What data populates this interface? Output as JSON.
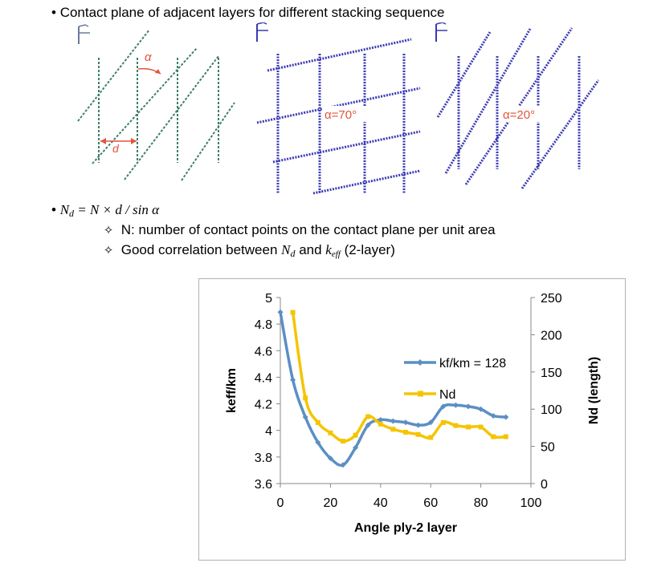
{
  "bullets": {
    "title": "Contact plane of adjacent layers for different stacking sequence",
    "formula_nd": "N",
    "formula_nd_sub": "d",
    "formula_rest": " = N × d / sin α",
    "sub1": "N: number of contact points on the contact plane per unit area",
    "sub2_pre": "Good correlation between ",
    "sub2_nd": "N",
    "sub2_nd_sub": "d",
    "sub2_and": " and ",
    "sub2_k": "k",
    "sub2_k_sub": "eff",
    "sub2_post": " (2-layer)"
  },
  "panels": {
    "p1_alpha": "α",
    "p1_d": "d",
    "p2_label": "α=70°",
    "p3_label": "α=20°"
  },
  "colors": {
    "panel1_lines": "#3f7f6a",
    "panel23_lines": "#3a3ab4",
    "annotation": "#e0553a",
    "series_keff": "#5b8fc4",
    "series_nd": "#f5c400"
  },
  "chart_data": {
    "type": "line",
    "xlabel": "Angle ply-2 layer",
    "ylabel": "keff/km",
    "y2label": "Nd (length)",
    "xlim": [
      0,
      100
    ],
    "ylim": [
      3.6,
      5
    ],
    "y2lim": [
      0,
      250
    ],
    "x_ticks": [
      "0",
      "20",
      "40",
      "60",
      "80",
      "100"
    ],
    "y_ticks": [
      "3.6",
      "3.8",
      "4",
      "4.2",
      "4.4",
      "4.6",
      "4.8",
      "5"
    ],
    "y2_ticks": [
      "0",
      "50",
      "100",
      "150",
      "200",
      "250"
    ],
    "grid": false,
    "legend_position": "right",
    "series": [
      {
        "name": "kf/km = 128",
        "axis": "left",
        "marker": "diamond",
        "x": [
          0,
          5,
          10,
          15,
          20,
          25,
          30,
          35,
          40,
          45,
          50,
          55,
          60,
          65,
          70,
          75,
          80,
          85,
          90
        ],
        "y": [
          4.89,
          4.38,
          4.1,
          3.91,
          3.79,
          3.74,
          3.87,
          4.04,
          4.08,
          4.07,
          4.06,
          4.04,
          4.06,
          4.18,
          4.19,
          4.18,
          4.16,
          4.11,
          4.1
        ]
      },
      {
        "name": "Nd",
        "axis": "right",
        "marker": "square",
        "x": [
          5,
          10,
          15,
          20,
          25,
          30,
          35,
          40,
          45,
          50,
          55,
          60,
          65,
          70,
          75,
          80,
          85,
          90
        ],
        "y": [
          230,
          115,
          82,
          68,
          57,
          65,
          90,
          80,
          73,
          69,
          66,
          62,
          82,
          78,
          76,
          76,
          63,
          63
        ]
      }
    ]
  }
}
